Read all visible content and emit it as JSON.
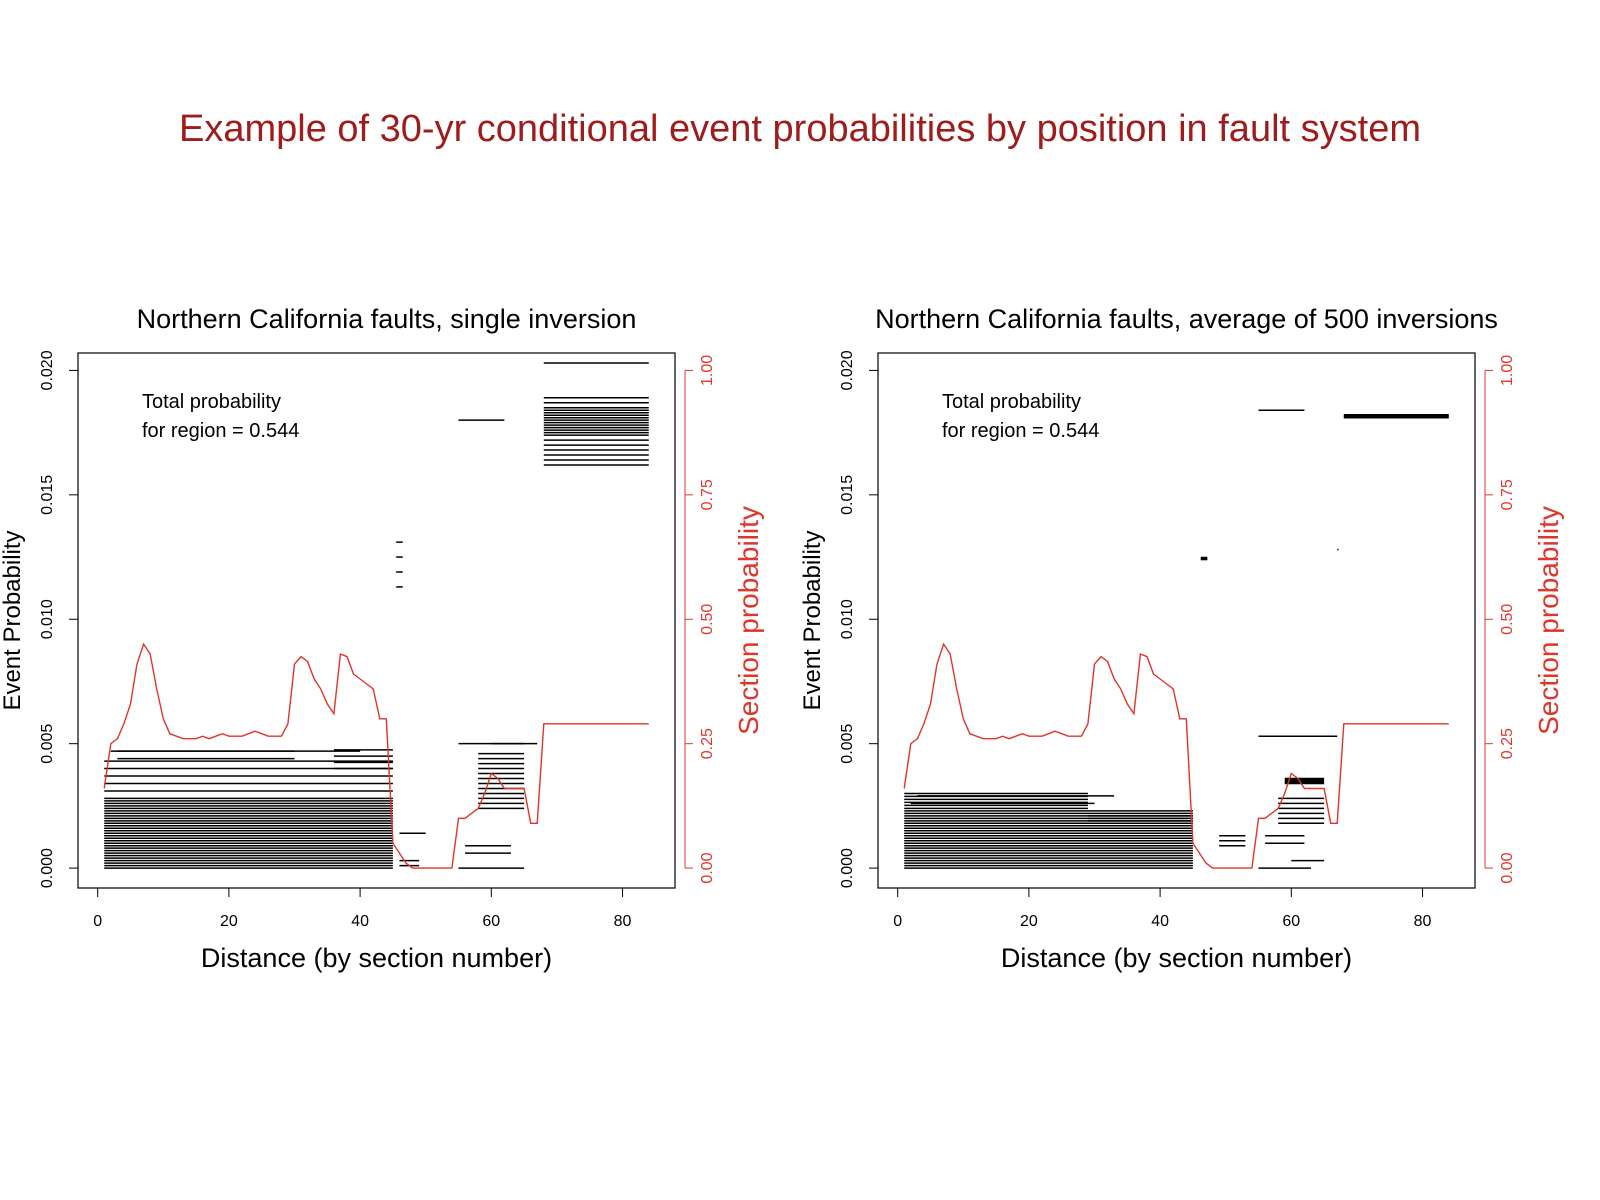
{
  "slide": {
    "title": "Example of 30-yr conditional event probabilities by position in fault system"
  },
  "colors": {
    "title": "#a01c1c",
    "section_line": "#e0352b",
    "section_axis": "#e0352b",
    "events": "#000000"
  },
  "chart_data": [
    {
      "type": "line",
      "title": "Northern California faults, single inversion",
      "xlabel": "Distance (by section number)",
      "ylabel": "Event Probability",
      "y2label": "Section probability",
      "xlim": [
        -3,
        88
      ],
      "ylim": [
        -0.0008,
        0.0207
      ],
      "y2lim": [
        -0.04,
        1.035
      ],
      "xticks": [
        0,
        20,
        40,
        60,
        80
      ],
      "yticks": [
        0.0,
        0.005,
        0.01,
        0.015,
        0.02
      ],
      "ytick_labels": [
        "0.000",
        "0.005",
        "0.010",
        "0.015",
        "0.020"
      ],
      "y2ticks": [
        0.0,
        0.25,
        0.5,
        0.75,
        1.0
      ],
      "y2tick_labels": [
        "0.00",
        "0.25",
        "0.50",
        "0.75",
        "1.00"
      ],
      "annotation": [
        "Total probability",
        "for region = 0.544"
      ],
      "section_probability": {
        "x": [
          1,
          2,
          3,
          4,
          5,
          6,
          7,
          8,
          9,
          10,
          11,
          12,
          13,
          14,
          15,
          16,
          17,
          18,
          19,
          20,
          21,
          22,
          23,
          24,
          25,
          26,
          27,
          28,
          29,
          30,
          31,
          32,
          33,
          34,
          35,
          36,
          37,
          38,
          39,
          40,
          41,
          42,
          43,
          44,
          45,
          46,
          47,
          48,
          49,
          50,
          51,
          52,
          53,
          54,
          55,
          56,
          57,
          58,
          59,
          60,
          61,
          62,
          63,
          64,
          65,
          66,
          67,
          68,
          84
        ],
        "y": [
          0.16,
          0.25,
          0.26,
          0.29,
          0.33,
          0.41,
          0.45,
          0.43,
          0.36,
          0.3,
          0.27,
          0.265,
          0.26,
          0.26,
          0.26,
          0.265,
          0.26,
          0.265,
          0.27,
          0.265,
          0.265,
          0.265,
          0.27,
          0.275,
          0.27,
          0.265,
          0.265,
          0.265,
          0.29,
          0.41,
          0.425,
          0.415,
          0.38,
          0.36,
          0.33,
          0.31,
          0.43,
          0.425,
          0.39,
          0.38,
          0.37,
          0.36,
          0.3,
          0.3,
          0.05,
          0.03,
          0.01,
          0.0,
          0.0,
          0.0,
          0.0,
          0.0,
          0.0,
          0.0,
          0.1,
          0.1,
          0.11,
          0.12,
          0.15,
          0.19,
          0.18,
          0.16,
          0.16,
          0.16,
          0.16,
          0.09,
          0.09,
          0.29,
          0.29
        ]
      },
      "events": [
        {
          "x0": 1,
          "x1": 45,
          "y": 0.0,
          "n": 28,
          "dy": 0.0001
        },
        {
          "x0": 1,
          "x1": 29,
          "y": 0.0028,
          "n": 6,
          "dy": 0.0003
        },
        {
          "x0": 29,
          "x1": 45,
          "y": 0.0028,
          "n": 6,
          "dy": 0.0003
        },
        {
          "x0": 2,
          "x1": 40,
          "y": 0.0047,
          "n": 1,
          "dy": 0
        },
        {
          "x0": 3,
          "x1": 30,
          "y": 0.0044,
          "n": 2,
          "dy": 0.0003
        },
        {
          "x0": 36,
          "x1": 45,
          "y": 0.004,
          "n": 4,
          "dy": 0.00025
        },
        {
          "x0": 46,
          "x1": 50,
          "y": 0.0014,
          "n": 1,
          "dy": 0
        },
        {
          "x0": 46,
          "x1": 49,
          "y": 0.0001,
          "n": 2,
          "dy": 0.0002
        },
        {
          "x0": 45.5,
          "x1": 46.5,
          "y": 0.0113,
          "n": 4,
          "dy": 0.0006
        },
        {
          "x0": 55,
          "x1": 62,
          "y": 0.018,
          "n": 1,
          "dy": 0
        },
        {
          "x0": 55,
          "x1": 65,
          "y": 0.0,
          "n": 1,
          "dy": 0
        },
        {
          "x0": 56,
          "x1": 63,
          "y": 0.0006,
          "n": 2,
          "dy": 0.0003
        },
        {
          "x0": 58,
          "x1": 65,
          "y": 0.0024,
          "n": 12,
          "dy": 0.0002
        },
        {
          "x0": 60,
          "x1": 65,
          "y": 0.005,
          "n": 1,
          "dy": 0
        },
        {
          "x0": 55,
          "x1": 67,
          "y": 0.005,
          "n": 1,
          "dy": 0
        },
        {
          "x0": 68,
          "x1": 84,
          "y": 0.0162,
          "n": 12,
          "dy": 0.0002
        },
        {
          "x0": 68,
          "x1": 84,
          "y": 0.0175,
          "n": 8,
          "dy": 0.0002
        },
        {
          "x0": 68,
          "x1": 84,
          "y": 0.0203,
          "n": 1,
          "dy": 0
        }
      ]
    },
    {
      "type": "line",
      "title": "Northern California faults, average of 500 inversions",
      "xlabel": "Distance (by section number)",
      "ylabel": "Event Probability",
      "y2label": "Section probability",
      "xlim": [
        -3,
        88
      ],
      "ylim": [
        -0.0008,
        0.0207
      ],
      "y2lim": [
        -0.04,
        1.035
      ],
      "xticks": [
        0,
        20,
        40,
        60,
        80
      ],
      "yticks": [
        0.0,
        0.005,
        0.01,
        0.015,
        0.02
      ],
      "ytick_labels": [
        "0.000",
        "0.005",
        "0.010",
        "0.015",
        "0.020"
      ],
      "y2ticks": [
        0.0,
        0.25,
        0.5,
        0.75,
        1.0
      ],
      "y2tick_labels": [
        "0.00",
        "0.25",
        "0.50",
        "0.75",
        "1.00"
      ],
      "annotation": [
        "Total probability",
        "for region = 0.544"
      ],
      "section_probability": {
        "x": [
          1,
          2,
          3,
          4,
          5,
          6,
          7,
          8,
          9,
          10,
          11,
          12,
          13,
          14,
          15,
          16,
          17,
          18,
          19,
          20,
          21,
          22,
          23,
          24,
          25,
          26,
          27,
          28,
          29,
          30,
          31,
          32,
          33,
          34,
          35,
          36,
          37,
          38,
          39,
          40,
          41,
          42,
          43,
          44,
          45,
          46,
          47,
          48,
          49,
          50,
          51,
          52,
          53,
          54,
          55,
          56,
          57,
          58,
          59,
          60,
          61,
          62,
          63,
          64,
          65,
          66,
          67,
          68,
          84
        ],
        "y": [
          0.16,
          0.25,
          0.26,
          0.29,
          0.33,
          0.41,
          0.45,
          0.43,
          0.36,
          0.3,
          0.27,
          0.265,
          0.26,
          0.26,
          0.26,
          0.265,
          0.26,
          0.265,
          0.27,
          0.265,
          0.265,
          0.265,
          0.27,
          0.275,
          0.27,
          0.265,
          0.265,
          0.265,
          0.29,
          0.41,
          0.425,
          0.415,
          0.38,
          0.36,
          0.33,
          0.31,
          0.43,
          0.425,
          0.39,
          0.38,
          0.37,
          0.36,
          0.3,
          0.3,
          0.05,
          0.03,
          0.01,
          0.0,
          0.0,
          0.0,
          0.0,
          0.0,
          0.0,
          0.0,
          0.1,
          0.1,
          0.11,
          0.12,
          0.15,
          0.19,
          0.18,
          0.16,
          0.16,
          0.16,
          0.16,
          0.09,
          0.09,
          0.29,
          0.29
        ]
      },
      "events": [
        {
          "x0": 1,
          "x1": 45,
          "y": 0.0,
          "n": 24,
          "dy": 0.0001
        },
        {
          "x0": 1,
          "x1": 29,
          "y": 0.0024,
          "n": 6,
          "dy": 0.00012
        },
        {
          "x0": 29,
          "x1": 45,
          "y": 0.0018,
          "n": 4,
          "dy": 0.0001
        },
        {
          "x0": 3,
          "x1": 33,
          "y": 0.0029,
          "n": 1,
          "dy": 0
        },
        {
          "x0": 2,
          "x1": 30,
          "y": 0.0026,
          "n": 1,
          "dy": 0
        },
        {
          "x0": 49,
          "x1": 53,
          "y": 0.0009,
          "n": 3,
          "dy": 0.0002
        },
        {
          "x0": 46.2,
          "x1": 47.2,
          "y": 0.0124,
          "n": 3,
          "dy": 4e-05
        },
        {
          "x0": 55,
          "x1": 62,
          "y": 0.0184,
          "n": 1,
          "dy": 0
        },
        {
          "x0": 67,
          "x1": 67.2,
          "y": 0.0128,
          "n": 1,
          "dy": 0
        },
        {
          "x0": 55,
          "x1": 67,
          "y": 0.0053,
          "n": 1,
          "dy": 0
        },
        {
          "x0": 55,
          "x1": 63,
          "y": 0.0,
          "n": 1,
          "dy": 0
        },
        {
          "x0": 60,
          "x1": 65,
          "y": 0.0003,
          "n": 1,
          "dy": 0
        },
        {
          "x0": 56,
          "x1": 62,
          "y": 0.001,
          "n": 2,
          "dy": 0.0003
        },
        {
          "x0": 58,
          "x1": 65,
          "y": 0.0018,
          "n": 6,
          "dy": 0.0002
        },
        {
          "x0": 59,
          "x1": 65,
          "y": 0.0034,
          "n": 5,
          "dy": 5e-05
        },
        {
          "x0": 68,
          "x1": 84,
          "y": 0.0181,
          "n": 4,
          "dy": 4e-05
        }
      ]
    }
  ]
}
